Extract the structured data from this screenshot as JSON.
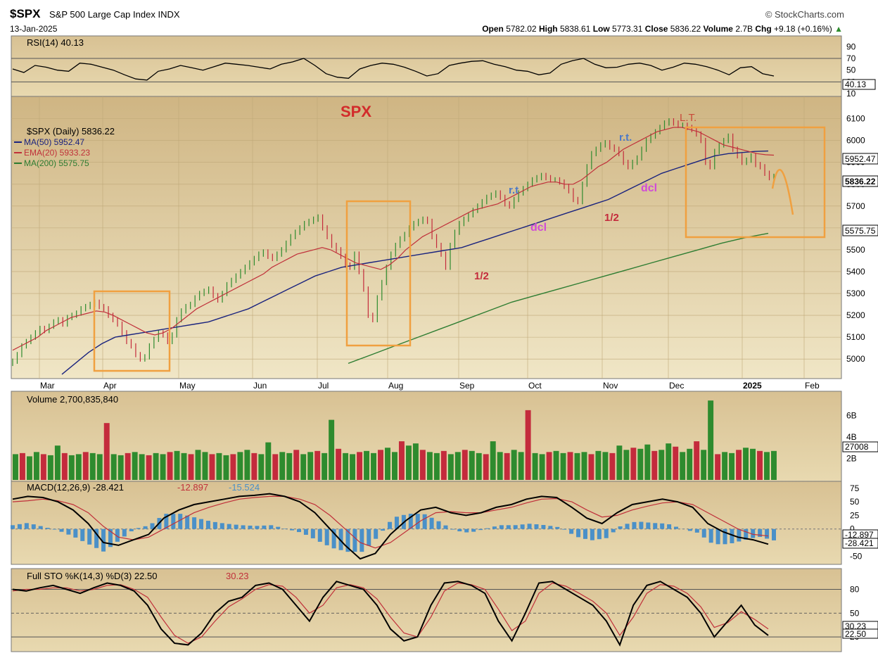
{
  "header": {
    "symbol": "$SPX",
    "name": "S&P 500 Large Cap Index",
    "exchange": "INDX",
    "date": "13-Jan-2025",
    "brand": "StockCharts.com",
    "open_label": "Open",
    "open": "5782.02",
    "high_label": "High",
    "high": "5838.61",
    "low_label": "Low",
    "low": "5773.31",
    "close_label": "Close",
    "close": "5836.22",
    "volume_label": "Volume",
    "volume": "2.7B",
    "chg_label": "Chg",
    "chg": "+9.18 (+0.16%)"
  },
  "colors": {
    "panel_bg": "#dcc79a",
    "up": "#2e8b2e",
    "down": "#c42b3c",
    "ma50": "#1a237e",
    "ema20": "#c0303a",
    "ma200": "#2e7d32",
    "annotation_box": "#f0a040",
    "macd_hist": "#4a90c8",
    "rsi_fill": "#3a8a3a"
  },
  "chart_data": [
    {
      "type": "line",
      "panel": "rsi",
      "legend": "RSI(14) 40.13",
      "ylim": [
        10,
        100
      ],
      "y_ticks": [
        "90",
        "70",
        "50",
        "30",
        "10"
      ],
      "guide_lines": [
        70,
        30
      ],
      "last_value": "40.13",
      "series": [
        {
          "name": "RSI(14)",
          "values": [
            52,
            46,
            58,
            55,
            50,
            48,
            62,
            60,
            55,
            50,
            42,
            35,
            33,
            48,
            52,
            58,
            54,
            50,
            56,
            62,
            60,
            58,
            55,
            52,
            60,
            64,
            70,
            58,
            44,
            38,
            36,
            52,
            58,
            62,
            60,
            55,
            48,
            40,
            44,
            58,
            62,
            65,
            66,
            60,
            56,
            50,
            48,
            42,
            45,
            60,
            66,
            70,
            60,
            54,
            55,
            60,
            62,
            58,
            50,
            55,
            62,
            60,
            56,
            50,
            42,
            54,
            56,
            44,
            40
          ]
        }
      ]
    },
    {
      "type": "candlestick",
      "panel": "price",
      "title": "SPX",
      "legend": [
        "$SPX (Daily) 5836.22",
        "MA(50) 5952.47",
        "EMA(20) 5933.23",
        "MA(200) 5575.75"
      ],
      "ylim": [
        4920,
        6160
      ],
      "y_ticks": [
        "6100",
        "6000",
        "5900",
        "5800",
        "5700",
        "5600",
        "5500",
        "5400",
        "5300",
        "5200",
        "5100",
        "5000"
      ],
      "x_labels": [
        "Mar",
        "Apr",
        "May",
        "Jun",
        "Jul",
        "Aug",
        "Sep",
        "Oct",
        "Nov",
        "Dec",
        "2025",
        "Feb"
      ],
      "last_values": [
        "5952.47",
        "5836.22",
        "5575.75"
      ],
      "annotations": [
        "L.T.",
        "r.t.",
        "r.t",
        "dcl",
        "dcl",
        "1/2",
        "1/2"
      ],
      "close": [
        4990,
        5020,
        5060,
        5080,
        5100,
        5120,
        5140,
        5130,
        5150,
        5170,
        5180,
        5160,
        5190,
        5200,
        5210,
        5230,
        5240,
        5250,
        5260,
        5240,
        5230,
        5200,
        5180,
        5160,
        5120,
        5080,
        5060,
        5020,
        5000,
        5010,
        5060,
        5090,
        5120,
        5110,
        5080,
        5110,
        5180,
        5220,
        5240,
        5250,
        5280,
        5300,
        5310,
        5320,
        5290,
        5270,
        5300,
        5340,
        5360,
        5380,
        5400,
        5420,
        5440,
        5460,
        5480,
        5490,
        5470,
        5460,
        5480,
        5500,
        5530,
        5560,
        5580,
        5600,
        5620,
        5630,
        5640,
        5650,
        5600,
        5560,
        5520,
        5500,
        5470,
        5430,
        5420,
        5480,
        5400,
        5320,
        5200,
        5180,
        5280,
        5350,
        5420,
        5480,
        5520,
        5550,
        5570,
        5600,
        5620,
        5630,
        5640,
        5630,
        5560,
        5520,
        5480,
        5420,
        5520,
        5580,
        5620,
        5640,
        5660,
        5680,
        5700,
        5720,
        5740,
        5750,
        5760,
        5740,
        5710,
        5700,
        5730,
        5760,
        5780,
        5800,
        5820,
        5830,
        5840,
        5830,
        5820,
        5820,
        5810,
        5790,
        5770,
        5730,
        5720,
        5800,
        5880,
        5940,
        5960,
        5980,
        5990,
        5970,
        5960,
        5940,
        5900,
        5880,
        5900,
        5920,
        5960,
        6000,
        6020,
        6040,
        6060,
        6080,
        6090,
        6080,
        6070,
        6070,
        6060,
        6050,
        6030,
        6000,
        5900,
        5880,
        5950,
        5980,
        6000,
        6020,
        5960,
        5930,
        5900,
        5910,
        5930,
        5890,
        5880,
        5850,
        5830,
        5836
      ],
      "ema20": [
        5040,
        5060,
        5080,
        5100,
        5130,
        5150,
        5170,
        5190,
        5200,
        5210,
        5220,
        5215,
        5200,
        5180,
        5160,
        5140,
        5120,
        5110,
        5120,
        5140,
        5170,
        5200,
        5230,
        5250,
        5270,
        5290,
        5310,
        5330,
        5350,
        5370,
        5390,
        5420,
        5440,
        5460,
        5480,
        5490,
        5500,
        5510,
        5500,
        5480,
        5460,
        5440,
        5430,
        5420,
        5410,
        5430,
        5460,
        5500,
        5530,
        5560,
        5580,
        5600,
        5620,
        5640,
        5660,
        5680,
        5690,
        5700,
        5710,
        5730,
        5750,
        5770,
        5790,
        5800,
        5810,
        5810,
        5800,
        5800,
        5820,
        5850,
        5880,
        5900,
        5930,
        5960,
        5980,
        6000,
        6020,
        6040,
        6050,
        6060,
        6060,
        6050,
        6040,
        6020,
        6000,
        5980,
        5970,
        5960,
        5950,
        5940,
        5935,
        5933
      ],
      "ma50": [
        4930,
        4980,
        5030,
        5070,
        5100,
        5110,
        5120,
        5130,
        5140,
        5150,
        5160,
        5170,
        5190,
        5210,
        5230,
        5260,
        5290,
        5320,
        5350,
        5380,
        5400,
        5420,
        5430,
        5440,
        5450,
        5460,
        5470,
        5480,
        5490,
        5500,
        5510,
        5530,
        5550,
        5570,
        5590,
        5610,
        5630,
        5650,
        5670,
        5690,
        5710,
        5730,
        5760,
        5790,
        5820,
        5850,
        5870,
        5890,
        5910,
        5930,
        5940,
        5945,
        5950,
        5952
      ],
      "ma200": [
        4980,
        5020,
        5060,
        5100,
        5140,
        5180,
        5220,
        5260,
        5290,
        5320,
        5350,
        5380,
        5410,
        5440,
        5470,
        5500,
        5530,
        5555,
        5575
      ]
    },
    {
      "type": "bar",
      "panel": "volume",
      "legend": "Volume 2,700,835,840",
      "y_ticks": [
        "6B",
        "4B",
        "2B"
      ],
      "last_value": "27008",
      "values": [
        2.4,
        2.5,
        2.2,
        2.6,
        2.4,
        2.3,
        3.2,
        2.5,
        2.3,
        2.4,
        2.6,
        2.5,
        2.4,
        5.3,
        2.4,
        2.3,
        2.5,
        2.6,
        2.4,
        2.3,
        2.5,
        2.4,
        2.6,
        2.7,
        2.5,
        2.4,
        2.8,
        2.6,
        2.4,
        2.5,
        2.3,
        2.4,
        2.6,
        2.8,
        2.5,
        2.4,
        3.5,
        2.4,
        2.6,
        2.5,
        2.8,
        2.4,
        2.6,
        2.7,
        2.5,
        5.6,
        2.9,
        2.5,
        2.4,
        2.6,
        2.7,
        2.5,
        2.8,
        3.0,
        2.6,
        3.6,
        3.2,
        3.4,
        2.8,
        2.6,
        2.5,
        2.7,
        2.4,
        2.6,
        2.8,
        2.7,
        2.5,
        2.4,
        3.6,
        2.6,
        2.5,
        2.8,
        2.6,
        6.5,
        2.5,
        2.4,
        2.6,
        2.7,
        2.5,
        2.6,
        2.5,
        2.6,
        2.4,
        2.7,
        2.6,
        2.5,
        3.2,
        2.8,
        3.0,
        2.9,
        3.3,
        2.7,
        2.8,
        3.4,
        3.1,
        2.6,
        2.9,
        3.6,
        2.8,
        7.4,
        2.4,
        2.6,
        2.5,
        2.8,
        3.0,
        2.9,
        2.7,
        2.6,
        2.7
      ]
    },
    {
      "type": "line",
      "panel": "macd",
      "legend": [
        "MACD(12,26,9) -28.421",
        "-12.897",
        "-15.524"
      ],
      "ylim": [
        -60,
        80
      ],
      "y_ticks": [
        "75",
        "50",
        "25",
        "0",
        "-25",
        "-50"
      ],
      "last_values": [
        "-12.897",
        "-28.421"
      ],
      "series": [
        {
          "name": "MACD(12,26,9)",
          "values": [
            55,
            60,
            58,
            50,
            35,
            10,
            -25,
            -30,
            -20,
            -10,
            20,
            35,
            45,
            50,
            55,
            60,
            62,
            65,
            60,
            50,
            30,
            0,
            -30,
            -55,
            -45,
            -10,
            15,
            35,
            40,
            30,
            25,
            30,
            40,
            45,
            55,
            60,
            58,
            40,
            20,
            10,
            30,
            45,
            50,
            55,
            50,
            40,
            10,
            -5,
            -15,
            -20,
            -28
          ]
        },
        {
          "name": "-12.897",
          "values": [
            50,
            52,
            55,
            52,
            45,
            30,
            5,
            -15,
            -20,
            -15,
            0,
            15,
            30,
            40,
            48,
            55,
            58,
            60,
            60,
            55,
            45,
            25,
            0,
            -25,
            -35,
            -25,
            -5,
            15,
            30,
            32,
            30,
            30,
            35,
            40,
            48,
            55,
            56,
            50,
            35,
            22,
            25,
            35,
            42,
            48,
            50,
            45,
            30,
            15,
            0,
            -10,
            -13
          ]
        }
      ]
    },
    {
      "type": "line",
      "panel": "sto",
      "legend": [
        "Full STO %K(14,3) %D(3) 22.50",
        "30.23"
      ],
      "ylim": [
        5,
        100
      ],
      "y_ticks": [
        "80",
        "50",
        "20"
      ],
      "last_values": [
        "30.23",
        "22.50"
      ],
      "series": [
        {
          "name": "Full STO %K(14,3)",
          "values": [
            80,
            78,
            82,
            85,
            80,
            75,
            82,
            88,
            85,
            78,
            60,
            30,
            12,
            10,
            25,
            50,
            65,
            70,
            85,
            88,
            80,
            60,
            40,
            70,
            90,
            85,
            80,
            60,
            30,
            15,
            20,
            60,
            88,
            90,
            85,
            75,
            40,
            15,
            50,
            88,
            90,
            80,
            70,
            60,
            40,
            10,
            60,
            85,
            90,
            80,
            70,
            50,
            20,
            40,
            60,
            35,
            22
          ]
        },
        {
          "name": "30.23",
          "values": [
            78,
            80,
            80,
            82,
            82,
            78,
            80,
            85,
            86,
            80,
            70,
            45,
            22,
            12,
            20,
            40,
            58,
            68,
            80,
            86,
            84,
            70,
            50,
            60,
            82,
            86,
            82,
            68,
            45,
            25,
            20,
            45,
            78,
            88,
            86,
            80,
            55,
            28,
            40,
            75,
            88,
            84,
            75,
            65,
            50,
            22,
            45,
            75,
            86,
            84,
            75,
            58,
            32,
            38,
            52,
            42,
            30
          ]
        }
      ]
    }
  ]
}
